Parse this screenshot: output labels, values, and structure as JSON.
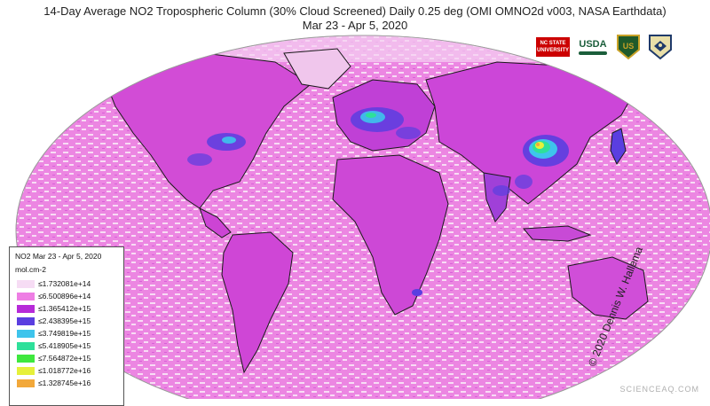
{
  "header": {
    "title": "14-Day Average NO2 Tropospheric Column (30% Cloud Screened) Daily 0.25 deg (OMI OMNO2d v003, NASA Earthdata)",
    "subtitle": "Mar 23 - Apr 5, 2020"
  },
  "logos": {
    "ncstate": "NC STATE UNIVERSITY",
    "usda": "USDA",
    "fs": "US"
  },
  "legend": {
    "title": "NO2 Mar 23 - Apr 5, 2020",
    "units": "mol.cm-2",
    "items": [
      {
        "label": "≤1.732081e+14",
        "color": "#f6dcf4"
      },
      {
        "label": "≤6.500896e+14",
        "color": "#ee7ee4"
      },
      {
        "label": "≤1.365412e+15",
        "color": "#b62ad8"
      },
      {
        "label": "≤2.438395e+15",
        "color": "#5a3ee0"
      },
      {
        "label": "≤3.749819e+15",
        "color": "#3ec4ec"
      },
      {
        "label": "≤5.418905e+15",
        "color": "#2ee09a"
      },
      {
        "label": "≤7.564872e+15",
        "color": "#3ee83e"
      },
      {
        "label": "≤1.018772e+16",
        "color": "#e6f03a"
      },
      {
        "label": "≤1.328745e+16",
        "color": "#f2a83a"
      }
    ]
  },
  "credit": "© 2020 Dennis W. Hallema",
  "watermark": "SCIENCEAQ.COM",
  "colors": {
    "ocean_background": "#ec80e0",
    "ocean_texture": "#f7d6f3",
    "land_base": "#d44ad8",
    "polluted_core": "#4230c8",
    "hotspot": "#e6f03a",
    "coastline": "#1a1a1a"
  }
}
